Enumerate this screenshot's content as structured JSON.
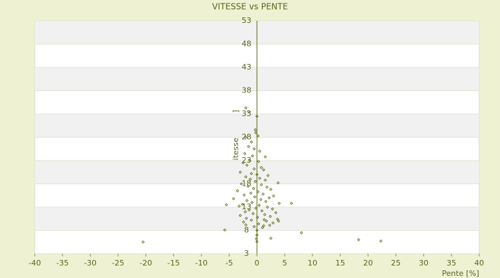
{
  "chart_data": {
    "type": "scatter",
    "title": "VITESSE vs PENTE",
    "x_label": "Pente [%]",
    "y_label": "Vitesse [km/h]",
    "color": "#5a6a10",
    "grid": true,
    "xlim": [
      -40,
      40
    ],
    "xticks": [
      -40,
      -35,
      -30,
      -25,
      -20,
      -15,
      -10,
      -5,
      0,
      5,
      10,
      15,
      20,
      25,
      30,
      35,
      40
    ],
    "ylim": [
      3,
      53
    ],
    "yticks": [
      3,
      8,
      13,
      18,
      23,
      28,
      33,
      38,
      43,
      48,
      53
    ],
    "x": [
      -2,
      -1.5,
      0,
      -0.3,
      -0.2,
      0.2,
      -2,
      -1,
      -1.5,
      -0.5,
      0.5,
      -2.2,
      -0.8,
      1.5,
      -1.3,
      0.3,
      -2.5,
      -1.8,
      0.8,
      -0.5,
      1.2,
      -3,
      -1,
      0,
      2,
      -2,
      0.5,
      -1.2,
      1.5,
      -0.3,
      3.8,
      -2.8,
      0.8,
      -1.6,
      1.8,
      -0.6,
      2.5,
      -3.5,
      0.2,
      -1.1,
      1.1,
      -2.3,
      3,
      -0.4,
      2.2,
      -4.2,
      0.7,
      -1.8,
      1.6,
      -0.9,
      4,
      -2.6,
      0.4,
      6.2,
      -5.5,
      -3.2,
      1.9,
      -0.2,
      2.8,
      -1.4,
      0.9,
      -2.1,
      3.4,
      -0.7,
      1.4,
      -3,
      2.4,
      0.1,
      -1.9,
      3.7,
      -1,
      1.7,
      -2.4,
      2.9,
      0.3,
      -2,
      1.2,
      3.9,
      -0.5,
      0,
      2.3,
      1.3,
      0,
      -0.1,
      0,
      2.5,
      1,
      -20.5,
      -5.8,
      8,
      18.3,
      22.3
    ],
    "y": [
      34.3,
      33.5,
      32.5,
      29.6,
      29,
      28.3,
      28,
      27,
      26,
      25.5,
      25,
      24.5,
      24,
      23.8,
      23,
      22.8,
      22.5,
      22,
      21.5,
      21.2,
      21,
      20.5,
      20.2,
      20,
      19.8,
      19.5,
      19.2,
      19,
      18.8,
      18.5,
      18.2,
      18,
      17.8,
      17.5,
      17.3,
      17,
      16.8,
      16.5,
      16.3,
      16,
      15.8,
      15.6,
      15.4,
      15.2,
      15,
      14.8,
      14.6,
      14.4,
      14.2,
      14,
      13.8,
      13.6,
      13.4,
      13.8,
      13.5,
      13.2,
      13,
      12.8,
      12.6,
      12.4,
      12.2,
      12,
      11.8,
      11.6,
      11.4,
      11.2,
      11,
      10.8,
      10.6,
      10.4,
      10.2,
      10,
      9.8,
      9.6,
      9.4,
      9.2,
      9,
      10,
      8.8,
      8,
      9.1,
      10.3,
      7,
      6.2,
      5.6,
      6.3,
      8.6,
      5.5,
      8.1,
      7.5,
      6,
      5.7
    ]
  }
}
